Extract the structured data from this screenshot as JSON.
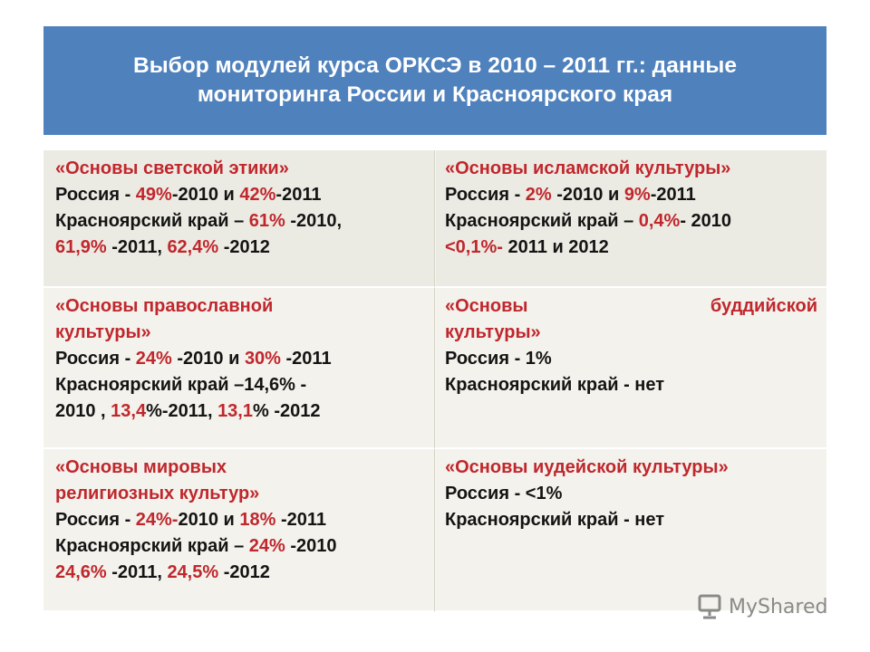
{
  "header": {
    "title_line1": "Выбор модулей курса ОРКСЭ в 2010 – 2011 гг.: данные",
    "title_line2": "мониторинга России и Красноярского края"
  },
  "cells": {
    "secular": {
      "title": "«Основы светской этики»",
      "l2_a": "Россия  -  ",
      "l2_b": "49%",
      "l2_c": "-2010 и ",
      "l2_d": "42%",
      "l2_e": "-2011",
      "l3_a": "Красноярский край – ",
      "l3_b": "61%",
      "l3_c": " -2010,",
      "l4_a": "61,9%",
      "l4_b": " -2011, ",
      "l4_c": "62,4%",
      "l4_d": " -2012"
    },
    "islamic": {
      "title": "«Основы исламской культуры»",
      "l2_a": "Россия  -  ",
      "l2_b": "2%",
      "l2_c": " -2010 и ",
      "l2_d": "9%",
      "l2_e": "-2011",
      "l3_a": "Красноярский край – ",
      "l3_b": "0,4%",
      "l3_c": "- 2010",
      "l4_a": "<0,1%-",
      "l4_b": " 2011 и 2012"
    },
    "orthodox": {
      "title_a": "«Основы православной",
      "title_b": "культуры»",
      "l3_a": "Россия -  ",
      "l3_b": "24%",
      "l3_c": " -2010 и ",
      "l3_d": "30%",
      "l3_e": " -2011",
      "l4_a": "Красноярский край –",
      "l4_b": "14,6%",
      "l4_c": " -",
      "l5_a": "2010 , ",
      "l5_b": "13,4",
      "l5_c": "%-2011, ",
      "l5_d": "13,1",
      "l5_e": "% -2012"
    },
    "buddhist": {
      "title_a1": "«Основы",
      "title_a2": "буддийской",
      "title_b": "культуры»",
      "l3": "Россия -  1%",
      "l4": "Красноярский край - нет"
    },
    "world": {
      "title_a": "«Основы мировых",
      "title_b": "религиозных культур»",
      "l3_a": "Россия -  ",
      "l3_b": "24%-",
      "l3_c": "2010 и ",
      "l3_d": "18%",
      "l3_e": " -2011",
      "l4_a": "Красноярский край – ",
      "l4_b": "24%",
      "l4_c": " -2010",
      "l5_a": "24,6%",
      "l5_b": " -2011, ",
      "l5_c": "24,5%",
      "l5_d": " -2012"
    },
    "jewish": {
      "title": "«Основы иудейской культуры»",
      "l2": "Россия - <1%",
      "l3": "Красноярский край - нет"
    }
  },
  "watermark": {
    "text": "MyShared",
    "icon": "presentation-board-icon"
  },
  "colors": {
    "header_bg": "#4f81bd",
    "accent_red": "#c0272d",
    "cell_bg": "#ecebe3"
  }
}
